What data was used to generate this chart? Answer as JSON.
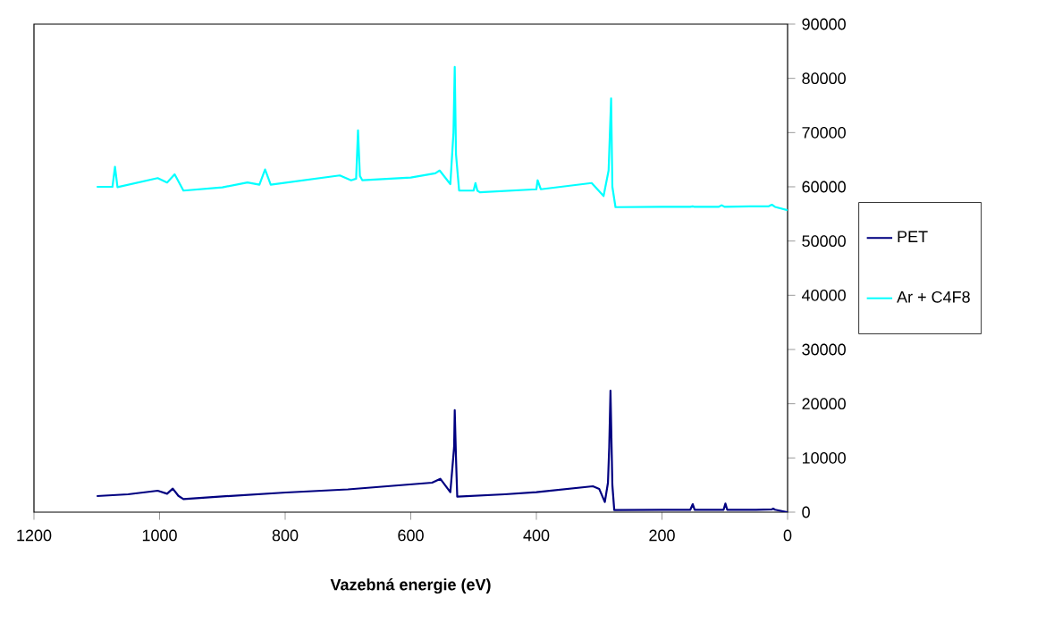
{
  "chart_data": {
    "type": "line",
    "xlabel": "Vazebná energie (eV)",
    "xlim": [
      1200,
      0
    ],
    "xticks": [
      1200,
      1000,
      800,
      600,
      400,
      200,
      0
    ],
    "ylim": [
      0,
      90000
    ],
    "yticks": [
      0,
      10000,
      20000,
      30000,
      40000,
      50000,
      60000,
      70000,
      80000,
      90000
    ],
    "grid": false,
    "legend": "right",
    "marker": "none",
    "line_style": "solid",
    "series": [
      {
        "name": "PET",
        "color": "#000080",
        "x": [
          1100,
          1050,
          1003,
          988,
          979,
          970,
          962,
          900,
          799,
          700,
          566,
          553,
          537,
          531,
          530,
          528,
          526,
          450,
          400,
          310,
          300,
          291,
          286,
          284,
          282,
          279,
          276,
          200,
          155,
          151,
          148,
          110,
          102,
          99,
          96,
          50,
          25,
          23,
          20,
          0
        ],
        "values": [
          2970,
          3300,
          3950,
          3400,
          4340,
          3000,
          2420,
          2900,
          3630,
          4200,
          5440,
          6150,
          3680,
          12000,
          18800,
          10000,
          2850,
          3300,
          3680,
          4780,
          4300,
          1870,
          5440,
          12000,
          22400,
          5000,
          380,
          420,
          420,
          1480,
          420,
          420,
          420,
          1600,
          420,
          420,
          500,
          660,
          450,
          0
        ]
      },
      {
        "name": "Ar + C4F8",
        "color": "#00ffff",
        "x": [
          1100,
          1075,
          1071,
          1067,
          1003,
          988,
          976,
          962,
          900,
          860,
          841,
          832,
          823,
          713,
          695,
          687,
          684,
          681,
          677,
          600,
          561,
          554,
          537,
          532,
          530,
          528,
          523,
          500,
          497,
          494,
          490,
          400,
          398,
          393,
          312,
          293,
          285,
          281,
          279,
          274,
          200,
          155,
          151,
          148,
          110,
          105,
          100,
          60,
          30,
          25,
          20,
          0
        ],
        "values": [
          60000,
          60000,
          63700,
          59950,
          61600,
          60800,
          62300,
          59300,
          59900,
          60800,
          60400,
          63200,
          60400,
          62100,
          61200,
          61500,
          70400,
          62000,
          61200,
          61700,
          62500,
          63000,
          60500,
          70000,
          82100,
          66000,
          59300,
          59300,
          60700,
          59300,
          59000,
          59550,
          61200,
          59550,
          60700,
          58300,
          63000,
          76300,
          60000,
          56250,
          56300,
          56300,
          56400,
          56300,
          56300,
          56600,
          56300,
          56400,
          56400,
          56700,
          56300,
          55700
        ]
      }
    ]
  }
}
